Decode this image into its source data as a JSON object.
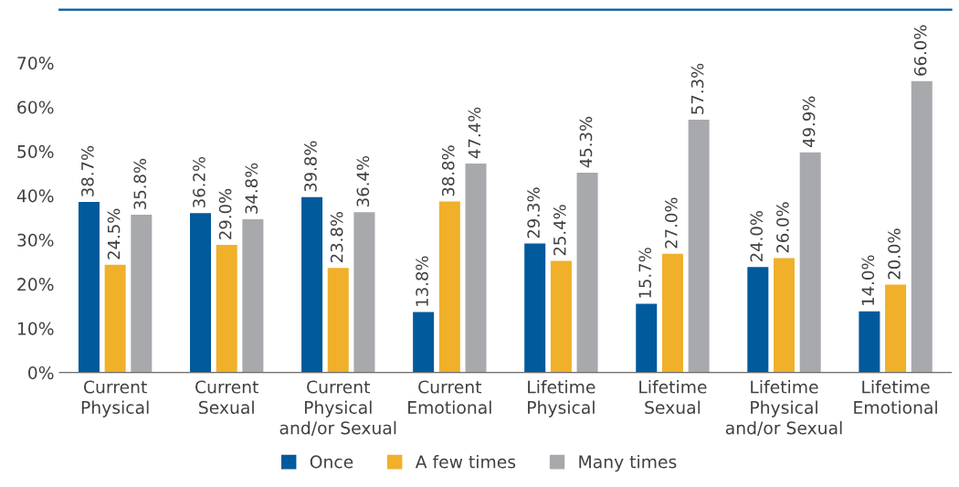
{
  "chart_data": {
    "type": "bar",
    "categories": [
      "Current\nPhysical",
      "Current\nSexual",
      "Current\nPhysical\nand/or Sexual",
      "Current\nEmotional",
      "Lifetime\nPhysical",
      "Lifetime\nSexual",
      "Lifetime\nPhysical\nand/or Sexual",
      "Lifetime\nEmotional"
    ],
    "series": [
      {
        "name": "Once",
        "color": "#005a9c",
        "values": [
          38.7,
          36.2,
          39.8,
          13.8,
          29.3,
          15.7,
          24.0,
          14.0
        ]
      },
      {
        "name": "A few times",
        "color": "#f0b02a",
        "values": [
          24.5,
          29.0,
          23.8,
          38.8,
          25.4,
          27.0,
          26.0,
          20.0
        ]
      },
      {
        "name": "Many times",
        "color": "#a7a9ac",
        "values": [
          35.8,
          34.8,
          36.4,
          47.4,
          45.3,
          57.3,
          49.9,
          66.0
        ]
      }
    ],
    "value_labels": [
      [
        "38.7%",
        "36.2%",
        "39.8%",
        "13.8%",
        "29.3%",
        "15.7%",
        "24.0%",
        "14.0%"
      ],
      [
        "24.5%",
        "29.0%",
        "23.8%",
        "38.8%",
        "25.4%",
        "27.0%",
        "26.0%",
        "20.0%"
      ],
      [
        "35.8%",
        "34.8%",
        "36.4%",
        "47.4%",
        "45.3%",
        "57.3%",
        "49.9%",
        "66.0%"
      ]
    ],
    "ylim": [
      0,
      82
    ],
    "yticks": [
      {
        "value": 0,
        "label": "0%"
      },
      {
        "value": 10,
        "label": "10%"
      },
      {
        "value": 20,
        "label": "20%"
      },
      {
        "value": 30,
        "label": "30%"
      },
      {
        "value": 40,
        "label": "40%"
      },
      {
        "value": 50,
        "label": "50%"
      },
      {
        "value": 60,
        "label": "60%"
      },
      {
        "value": 70,
        "label": "70%"
      }
    ],
    "grid": false,
    "legend": "bottom"
  }
}
